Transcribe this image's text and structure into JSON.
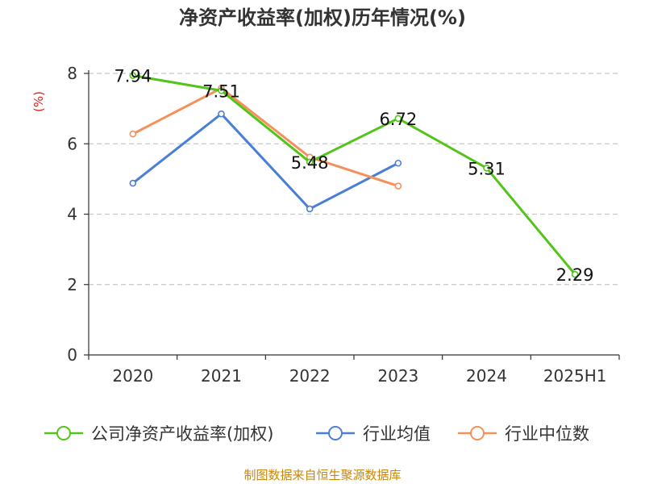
{
  "chart_data": {
    "type": "line",
    "title": "净资产收益率(加权)历年情况(%)",
    "ylabel": "(%)",
    "xlabel": "",
    "categories": [
      "2020",
      "2021",
      "2022",
      "2023",
      "2024",
      "2025H1"
    ],
    "ylim": [
      0,
      8
    ],
    "yticks": [
      0,
      2,
      4,
      6,
      8
    ],
    "grid": true,
    "legend_position": "bottom",
    "series": [
      {
        "name": "公司净资产收益率(加权)",
        "color": "#52c41a",
        "values": [
          7.94,
          7.51,
          5.48,
          6.72,
          5.31,
          2.29
        ],
        "labels": [
          "7.94",
          "7.51",
          "5.48",
          "6.72",
          "5.31",
          "2.29"
        ]
      },
      {
        "name": "行业均值",
        "color": "#4a7fd6",
        "values": [
          4.88,
          6.85,
          4.15,
          5.45,
          null,
          null
        ]
      },
      {
        "name": "行业中位数",
        "color": "#f5905a",
        "values": [
          6.28,
          7.58,
          5.62,
          4.8,
          null,
          null
        ]
      }
    ]
  },
  "source": "制图数据来自恒生聚源数据库"
}
